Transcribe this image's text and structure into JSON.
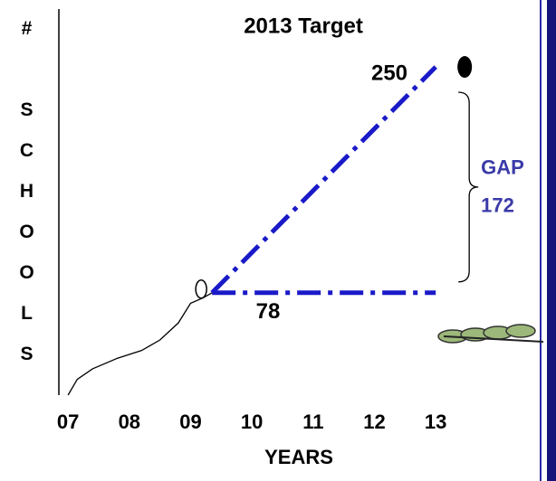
{
  "chart_data": {
    "type": "line",
    "y_label": "# SCHOOLS",
    "x_label": "YEARS",
    "xlim": [
      6.85,
      13.5
    ],
    "ylim": [
      0,
      270
    ],
    "xticks": [
      {
        "value": 7,
        "label": "07"
      },
      {
        "value": 8,
        "label": "08"
      },
      {
        "value": 9,
        "label": "09"
      },
      {
        "value": 10,
        "label": "10"
      },
      {
        "value": 11,
        "label": "11"
      },
      {
        "value": 12,
        "label": "12"
      },
      {
        "value": 13,
        "label": "13"
      }
    ],
    "series": [
      {
        "color": "#000000",
        "x": [
          7,
          7.15,
          7.4,
          7.8,
          8.2,
          8.5,
          8.8,
          9,
          9.2,
          9.35
        ],
        "values": [
          0,
          12,
          20,
          28,
          34,
          42,
          55,
          70,
          74,
          78
        ]
      },
      {
        "color": "#1a1ac8",
        "style": "dashdot",
        "x": [
          9.35,
          13
        ],
        "values": [
          78,
          250
        ]
      },
      {
        "color": "#1a1ac8",
        "style": "dashdot",
        "x": [
          9.35,
          13
        ],
        "values": [
          78,
          78
        ]
      }
    ],
    "target_label": "2013 Target",
    "target_value": 250,
    "current_value": 78,
    "gap_label": "GAP",
    "gap_value": 172,
    "gap_color": "#3a3aa8"
  }
}
